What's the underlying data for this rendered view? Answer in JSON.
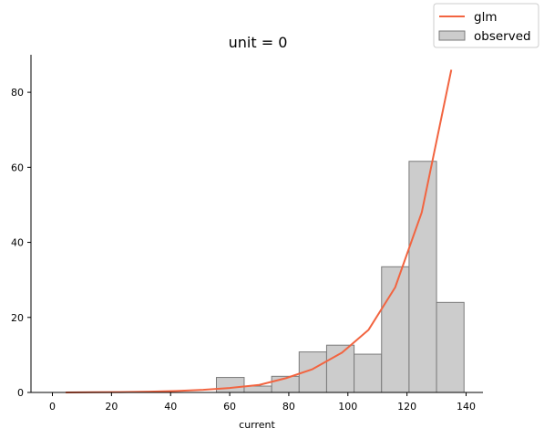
{
  "chart_data": {
    "type": "bar",
    "title": "unit = 0",
    "xlabel": "current",
    "ylabel": "",
    "xlim": [
      -8,
      146
    ],
    "ylim": [
      0,
      90
    ],
    "xticks": [
      0,
      20,
      40,
      60,
      80,
      100,
      120,
      140
    ],
    "yticks": [
      0,
      20,
      40,
      60,
      80
    ],
    "legend_position": "top-right",
    "colors": {
      "bars": "#cccccc",
      "bar_edge": "#7a7a7a",
      "line": "#f26440"
    },
    "series": [
      {
        "name": "observed",
        "kind": "histogram",
        "bins": [
          {
            "x0": 55.5,
            "x1": 64.9,
            "value": 4.0
          },
          {
            "x0": 64.9,
            "x1": 74.2,
            "value": 1.7
          },
          {
            "x0": 74.2,
            "x1": 83.5,
            "value": 4.3
          },
          {
            "x0": 83.5,
            "x1": 92.8,
            "value": 10.8
          },
          {
            "x0": 92.8,
            "x1": 102.1,
            "value": 12.6
          },
          {
            "x0": 102.1,
            "x1": 111.4,
            "value": 10.2
          },
          {
            "x0": 111.4,
            "x1": 120.7,
            "value": 33.5
          },
          {
            "x0": 120.7,
            "x1": 130.0,
            "value": 61.6
          },
          {
            "x0": 130.0,
            "x1": 139.3,
            "value": 24.0
          }
        ]
      },
      {
        "name": "glm",
        "kind": "line",
        "x": [
          4.5,
          14,
          23,
          33,
          42,
          51,
          60,
          70,
          79,
          88,
          98,
          107,
          116,
          125,
          135
        ],
        "y": [
          0.0,
          0.05,
          0.1,
          0.2,
          0.4,
          0.7,
          1.2,
          2.0,
          3.8,
          6.2,
          10.6,
          16.7,
          28.0,
          48.0,
          86.0
        ]
      }
    ]
  }
}
